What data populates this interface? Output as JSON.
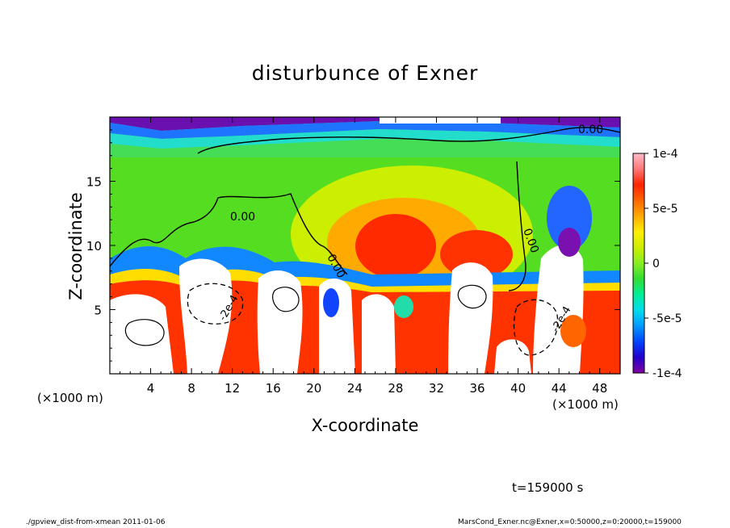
{
  "chart_data": {
    "type": "heatmap",
    "title": "disturbunce of Exner",
    "xlabel": "X-coordinate",
    "ylabel": "Z-coordinate",
    "x_unit_label": "(×1000 m)",
    "y_unit_label": "(×1000 m)",
    "xlim": [
      0,
      50
    ],
    "ylim": [
      0,
      20
    ],
    "x_ticks": [
      4,
      8,
      12,
      16,
      20,
      24,
      28,
      32,
      36,
      40,
      44,
      48
    ],
    "y_ticks": [
      5,
      10,
      15
    ],
    "colorbar": {
      "range": [
        -0.0001,
        0.0001
      ],
      "tick_values": [
        0.0001,
        5e-05,
        0,
        -5e-05,
        -0.0001
      ],
      "tick_labels": [
        "1e-4",
        "5e-5",
        "0",
        "-5e-5",
        "-1e-4"
      ],
      "colors": [
        "#7f00a0",
        "#2200cc",
        "#0044ff",
        "#0099ff",
        "#00ddee",
        "#00ee99",
        "#33dd33",
        "#88ee22",
        "#ccee00",
        "#ffee00",
        "#ffaa00",
        "#ff6600",
        "#ff2200",
        "#ff7777",
        "#ffbbcc"
      ]
    },
    "contour_labels": [
      "0.00",
      "0.00",
      "0.00",
      "0.00",
      "-2e-4",
      "-2e-4"
    ],
    "annotation": "t=159000 s"
  },
  "footer": {
    "left": "./gpview_dist-from-xmean  2011-01-06",
    "right": "MarsCond_Exner.nc@Exner,x=0:50000,z=0:20000,t=159000"
  }
}
